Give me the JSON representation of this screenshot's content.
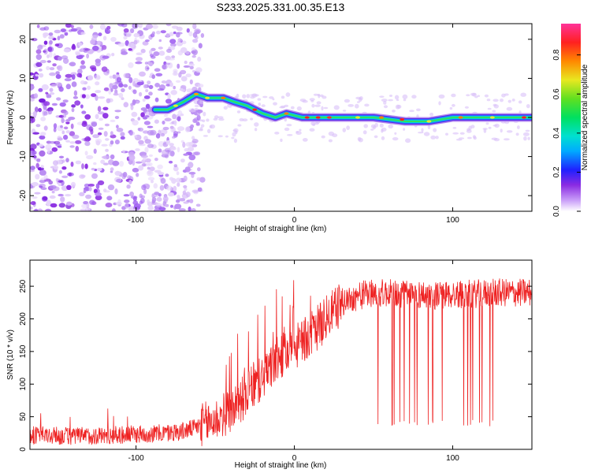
{
  "figure_title": "S233.2025.331.00.35.E13",
  "chart_data": [
    {
      "type": "heatmap",
      "title": "",
      "xlabel": "Height of straight line (km)",
      "ylabel": "Frequency (Hz)",
      "xlim": [
        -167,
        150
      ],
      "ylim": [
        -24,
        24
      ],
      "x_ticks": [
        -100,
        0,
        100
      ],
      "y_ticks": [
        -20,
        -10,
        0,
        10,
        20
      ],
      "colorbar": {
        "label": "Normalized spectral amplitude",
        "range": [
          0.0,
          0.96
        ],
        "ticks": [
          "0.0",
          "0.2",
          "0.4",
          "0.6",
          "0.8"
        ],
        "tick_values": [
          0.0,
          0.2,
          0.4,
          0.6,
          0.8
        ]
      },
      "colormap": [
        "#ffffff",
        "#d8b8f8",
        "#8a2be2",
        "#3030ff",
        "#00c8ff",
        "#00e0a0",
        "#30e030",
        "#e8e830",
        "#ff8000",
        "#ff2020",
        "#ff40a0"
      ],
      "ridge": [
        {
          "x": -88,
          "y": 2
        },
        {
          "x": -80,
          "y": 2
        },
        {
          "x": -70,
          "y": 4
        },
        {
          "x": -62,
          "y": 6
        },
        {
          "x": -55,
          "y": 5
        },
        {
          "x": -45,
          "y": 5
        },
        {
          "x": -38,
          "y": 4
        },
        {
          "x": -30,
          "y": 3
        },
        {
          "x": -20,
          "y": 1
        },
        {
          "x": -12,
          "y": 0
        },
        {
          "x": -5,
          "y": 1
        },
        {
          "x": 5,
          "y": 0
        },
        {
          "x": 15,
          "y": 0
        },
        {
          "x": 30,
          "y": 0
        },
        {
          "x": 50,
          "y": 0
        },
        {
          "x": 70,
          "y": -1
        },
        {
          "x": 85,
          "y": -1
        },
        {
          "x": 100,
          "y": 0
        },
        {
          "x": 120,
          "y": 0
        },
        {
          "x": 140,
          "y": 0
        },
        {
          "x": 150,
          "y": 0
        }
      ]
    },
    {
      "type": "line",
      "title": "",
      "xlabel": "Height of straight line (km)",
      "ylabel": "SNR (10 * v/v)",
      "xlim": [
        -167,
        150
      ],
      "ylim": [
        0,
        290
      ],
      "x_ticks": [
        -100,
        0,
        100
      ],
      "y_ticks": [
        0,
        50,
        100,
        150,
        200,
        250
      ],
      "series": [
        {
          "name": "SNR",
          "color": "#ee2222",
          "trend": {
            "x": [
              -167,
              -140,
              -110,
              -80,
              -70,
              -60,
              -50,
              -40,
              -30,
              -20,
              -10,
              0,
              10,
              20,
              30,
              40,
              50,
              70,
              90,
              110,
              130,
              150
            ],
            "y": [
              22,
              20,
              22,
              25,
              28,
              35,
              45,
              60,
              85,
              110,
              140,
              155,
              175,
              200,
              225,
              235,
              240,
              238,
              236,
              238,
              240,
              240
            ]
          },
          "dropouts_x_range": [
            45,
            127
          ],
          "dropout_floor": 35
        }
      ]
    }
  ]
}
